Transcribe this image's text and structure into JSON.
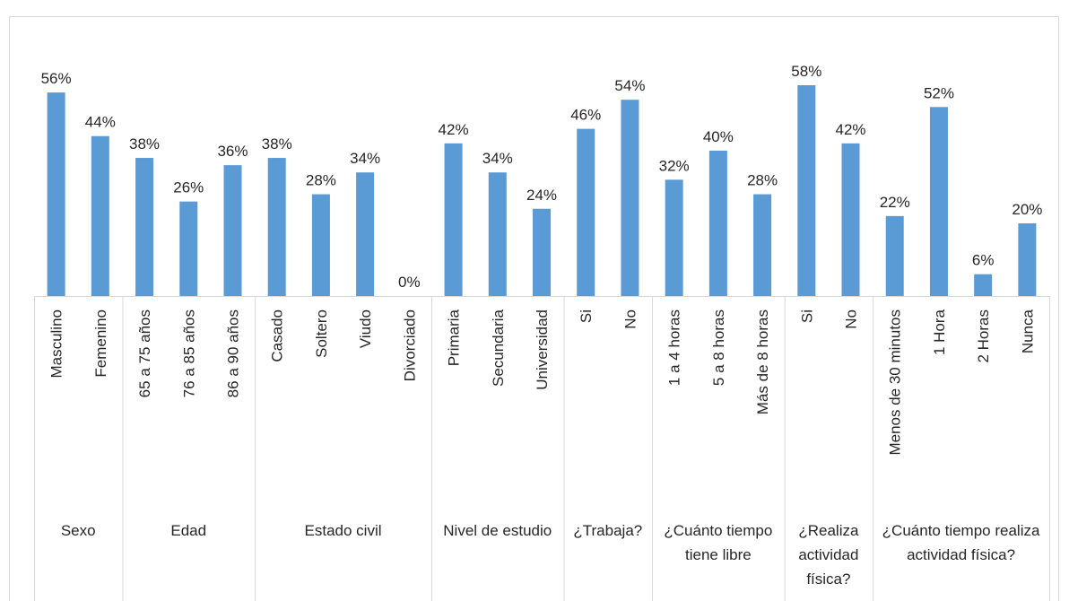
{
  "chart_data": {
    "type": "bar",
    "color": "#5b9bd5",
    "groups": [
      {
        "label": "Sexo",
        "categories": [
          "Masculino",
          "Femenino"
        ],
        "values": [
          56,
          44
        ],
        "value_labels": [
          "56%",
          "44%"
        ]
      },
      {
        "label": "Edad",
        "categories": [
          "65 a 75 años",
          "76 a 85 años",
          "86 a 90 años"
        ],
        "values": [
          38,
          26,
          36
        ],
        "value_labels": [
          "38%",
          "26%",
          "36%"
        ]
      },
      {
        "label": "Estado civil",
        "categories": [
          "Casado",
          "Soltero",
          "Viudo",
          "Divorciado"
        ],
        "values": [
          38,
          28,
          34,
          0
        ],
        "value_labels": [
          "38%",
          "28%",
          "34%",
          "0%"
        ]
      },
      {
        "label": "Nivel de estudio",
        "categories": [
          "Primaria",
          "Secundaria",
          "Universidad"
        ],
        "values": [
          42,
          34,
          24
        ],
        "value_labels": [
          "42%",
          "34%",
          "24%"
        ]
      },
      {
        "label": "¿Trabaja?",
        "categories": [
          "Si",
          "No"
        ],
        "values": [
          46,
          54
        ],
        "value_labels": [
          "46%",
          "54%"
        ]
      },
      {
        "label": "¿Cuánto tiempo tiene libre",
        "categories": [
          "1 a 4 horas",
          "5 a 8 horas",
          "Más de 8 horas"
        ],
        "values": [
          32,
          40,
          28
        ],
        "value_labels": [
          "32%",
          "40%",
          "28%"
        ]
      },
      {
        "label": "¿Realiza actividad física?",
        "categories": [
          "Si",
          "No"
        ],
        "values": [
          58,
          42
        ],
        "value_labels": [
          "58%",
          "42%"
        ]
      },
      {
        "label": "¿Cuánto tiempo realiza actividad física?",
        "categories": [
          "Menos de 30 minutos",
          "1 Hora",
          "2 Horas",
          "Nunca"
        ],
        "values": [
          22,
          52,
          6,
          20
        ],
        "value_labels": [
          "22%",
          "52%",
          "6%",
          "20%"
        ]
      }
    ]
  }
}
